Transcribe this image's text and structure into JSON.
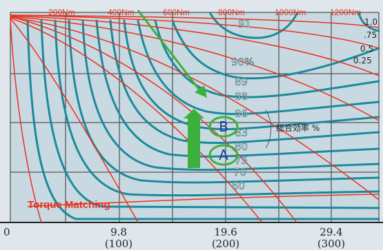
{
  "chart_data": {
    "type": "line",
    "title": "Torque Matching",
    "efficiency_label": "総合効率 %",
    "x_ticks": [
      {
        "value": 0,
        "label": "0",
        "sub": ""
      },
      {
        "value": 9.8,
        "label": "9.8",
        "sub": "(100)"
      },
      {
        "value": 19.6,
        "label": "19.6",
        "sub": "(200)"
      },
      {
        "value": 29.4,
        "label": "29.4",
        "sub": "(300)"
      }
    ],
    "torque_labels": [
      "200Nm",
      "400Nm",
      "600Nm",
      "800Nm",
      "1000Nm",
      "1200Nm"
    ],
    "efficiency_labels": [
      "91",
      "90%",
      "89",
      "88",
      "86",
      "83",
      "80",
      "75",
      "70",
      "60"
    ],
    "right_labels": [
      "1.0",
      ".75",
      "0.5",
      "0.25"
    ],
    "points": [
      {
        "name": "B",
        "efficiency": 83
      },
      {
        "name": "A",
        "efficiency": 80
      }
    ],
    "colors": {
      "torque": "#e8321e",
      "efficiency": "#1a8a9a",
      "arrow": "#3cb03c",
      "text": "#e8321e",
      "grid": "#333333"
    }
  }
}
